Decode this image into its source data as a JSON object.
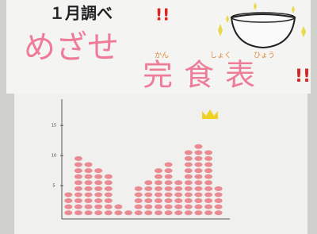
{
  "header": {
    "title": "１月調べ",
    "title_mark": "!!",
    "slogan": "めざせ",
    "subtitle": "完食表",
    "subtitle_mark": "!!",
    "furigana": [
      "かん",
      "しょく",
      "ひょう"
    ]
  },
  "chart_data": {
    "type": "dot",
    "color": "#e8707a",
    "categories": [
      null,
      null,
      null,
      null,
      null,
      null,
      null,
      null,
      null,
      null,
      null,
      null,
      null,
      null,
      null,
      null
    ],
    "values": [
      4,
      10,
      9,
      8,
      7,
      2,
      1,
      5,
      6,
      8,
      9,
      6,
      11,
      12,
      11,
      5
    ],
    "ylim": [
      0,
      17
    ],
    "yticks": [
      5,
      10,
      15
    ]
  }
}
